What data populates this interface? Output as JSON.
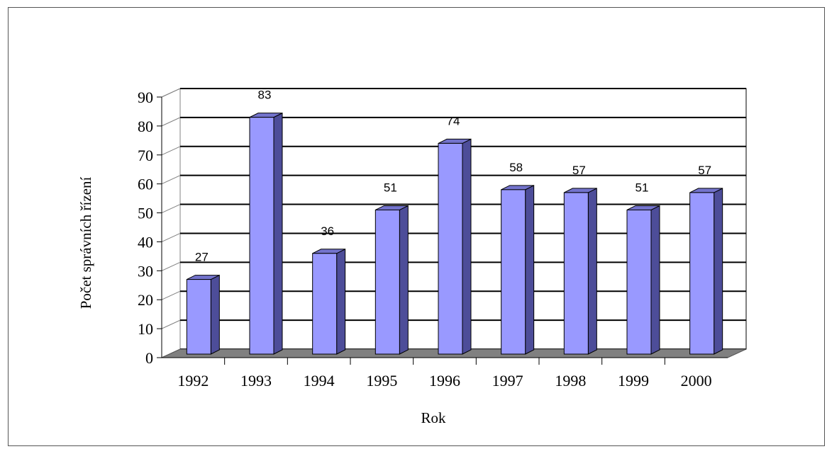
{
  "chart_data": {
    "type": "bar",
    "categories": [
      "1992",
      "1993",
      "1994",
      "1995",
      "1996",
      "1997",
      "1998",
      "1999",
      "2000"
    ],
    "values": [
      27,
      83,
      36,
      51,
      74,
      58,
      57,
      51,
      57
    ],
    "data_labels": [
      "27",
      "83",
      "36",
      "51",
      "74",
      "58",
      "57",
      "51",
      "57"
    ],
    "xlabel": "Rok",
    "ylabel": "Počet správních řízení",
    "ylim": [
      0,
      90
    ],
    "yticks": [
      "0",
      "10",
      "20",
      "30",
      "40",
      "50",
      "60",
      "70",
      "80",
      "90"
    ],
    "grid": true,
    "style": "3d-column",
    "colors": {
      "bar_front": "#9999ff",
      "bar_side": "#4d4d99",
      "bar_top": "#7373cc",
      "floor": "#808080",
      "grid": "#000000"
    }
  }
}
